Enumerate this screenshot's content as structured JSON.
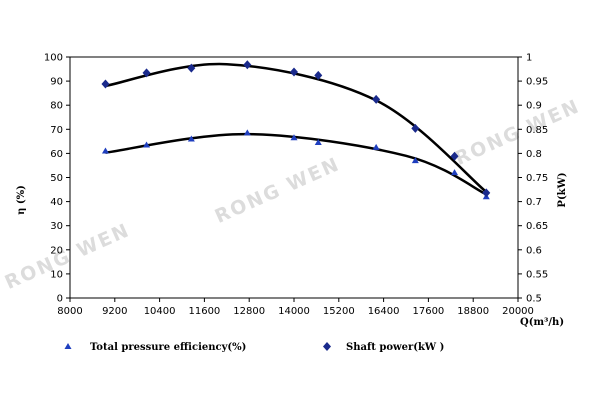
{
  "chart_data": {
    "type": "scatter",
    "title": "",
    "watermark": "RONG WEN",
    "x": {
      "label": "Q(m³/h)",
      "lim": [
        8000,
        20000
      ],
      "ticks": [
        "8000",
        "9200",
        "10400",
        "11600",
        "12800",
        "14000",
        "15200",
        "16400",
        "17600",
        "18800",
        "20000"
      ]
    },
    "y_left": {
      "label": "η (%)",
      "lim": [
        0,
        100
      ],
      "ticks": [
        "0",
        "10",
        "20",
        "30",
        "40",
        "50",
        "60",
        "70",
        "80",
        "90",
        "100"
      ]
    },
    "y_right": {
      "label": "P(kW)",
      "lim": [
        0.5,
        1.0
      ],
      "ticks": [
        "0.5",
        "0.55",
        "0.6",
        "0.65",
        "0.7",
        "0.75",
        "0.8",
        "0.85",
        "0.9",
        "0.95",
        "1"
      ]
    },
    "series": [
      {
        "name": "Total pressure efficiency(%)",
        "axis": "left",
        "marker": "triangle",
        "color": "#1f3fbf",
        "points": [
          [
            8950,
            61
          ],
          [
            10050,
            63.5
          ],
          [
            11250,
            66
          ],
          [
            12750,
            68.5
          ],
          [
            14000,
            66.5
          ],
          [
            14650,
            64.5
          ],
          [
            16200,
            62.5
          ],
          [
            17250,
            57
          ],
          [
            18300,
            52
          ],
          [
            19150,
            42
          ]
        ]
      },
      {
        "name": "Shaft power(kW )",
        "axis": "right",
        "marker": "diamond",
        "color": "#1a2a8c",
        "points": [
          [
            8950,
            0.944
          ],
          [
            10050,
            0.967
          ],
          [
            11250,
            0.977
          ],
          [
            12750,
            0.984
          ],
          [
            14000,
            0.969
          ],
          [
            14650,
            0.962
          ],
          [
            16200,
            0.912
          ],
          [
            17250,
            0.852
          ],
          [
            18300,
            0.794
          ],
          [
            19150,
            0.718
          ]
        ]
      }
    ],
    "fit_curves": [
      {
        "axis": "left",
        "points": [
          [
            8950,
            60.3
          ],
          [
            12750,
            68
          ],
          [
            17000,
            59
          ],
          [
            19150,
            43
          ]
        ]
      },
      {
        "axis": "right",
        "points": [
          [
            8950,
            0.94
          ],
          [
            12200,
            0.985
          ],
          [
            16200,
            0.91
          ],
          [
            19150,
            0.72
          ]
        ]
      }
    ],
    "legend": [
      "Total pressure efficiency(%)",
      "Shaft power(kW )"
    ],
    "legend_position": "bottom",
    "grid": false
  }
}
